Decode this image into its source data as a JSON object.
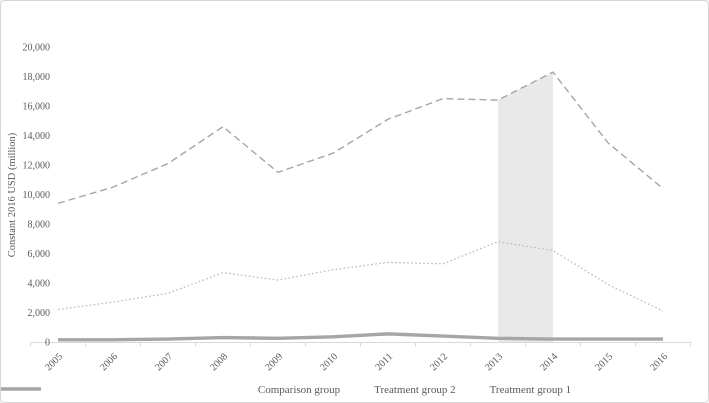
{
  "chart_data": {
    "type": "line",
    "title": "",
    "xlabel": "",
    "ylabel": "Constant 2016 USD (million)",
    "ylim": [
      0,
      20000
    ],
    "y_tick_step": 2000,
    "y_ticks": [
      "0",
      "2,000",
      "4,000",
      "6,000",
      "8,000",
      "10,000",
      "12,000",
      "14,000",
      "16,000",
      "18,000",
      "20,000"
    ],
    "categories": [
      "2005",
      "2006",
      "2007",
      "2008",
      "2009",
      "2010",
      "2011",
      "2012",
      "2013",
      "2014",
      "2015",
      "2016"
    ],
    "series": [
      {
        "name": "Comparison group",
        "style": "dashed",
        "color": "#a5a5a5",
        "values": [
          9400,
          10500,
          12100,
          14600,
          11500,
          12800,
          15100,
          16500,
          16400,
          18300,
          13500,
          10400
        ]
      },
      {
        "name": "Treatment group 2",
        "style": "dotted",
        "color": "#b7b7b7",
        "values": [
          2200,
          2700,
          3300,
          4700,
          4200,
          4900,
          5400,
          5300,
          6800,
          6200,
          3900,
          2100
        ]
      },
      {
        "name": "Treatment group 1",
        "style": "solid",
        "color": "#a6a6a6",
        "values": [
          150,
          150,
          200,
          300,
          250,
          350,
          550,
          400,
          250,
          200,
          200,
          200
        ]
      }
    ],
    "highlight_band": {
      "from": "2013",
      "to": "2014",
      "color": "#e9e9e9",
      "top_follows_series": "Comparison group"
    },
    "grid": false,
    "legend_position": "bottom"
  },
  "colors": {
    "axis": "#d9d9d9",
    "text": "#595959",
    "border": "#d6d6d6",
    "background": "#ffffff"
  }
}
